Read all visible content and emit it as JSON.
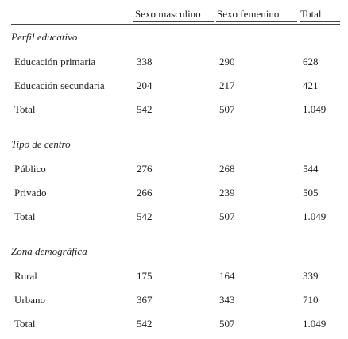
{
  "table": {
    "columns": [
      "Sexo masculino",
      "Sexo femenino",
      "Total"
    ],
    "sections": [
      {
        "title": "Perfil educativo",
        "rows": [
          [
            "Educación primaria",
            "338",
            "290",
            "628"
          ],
          [
            "Educación secundaria",
            "204",
            "217",
            "421"
          ],
          [
            "Total",
            "542",
            "507",
            "1.049"
          ]
        ]
      },
      {
        "title": "Tipo de centro",
        "rows": [
          [
            "Público",
            "276",
            "268",
            "544"
          ],
          [
            "Privado",
            "266",
            "239",
            "505"
          ],
          [
            "Total",
            "542",
            "507",
            "1.049"
          ]
        ]
      },
      {
        "title": "Zona demográfica",
        "rows": [
          [
            "Rural",
            "175",
            "164",
            "339"
          ],
          [
            "Urbano",
            "367",
            "343",
            "710"
          ],
          [
            "Total",
            "542",
            "507",
            "1.049"
          ]
        ]
      }
    ]
  }
}
